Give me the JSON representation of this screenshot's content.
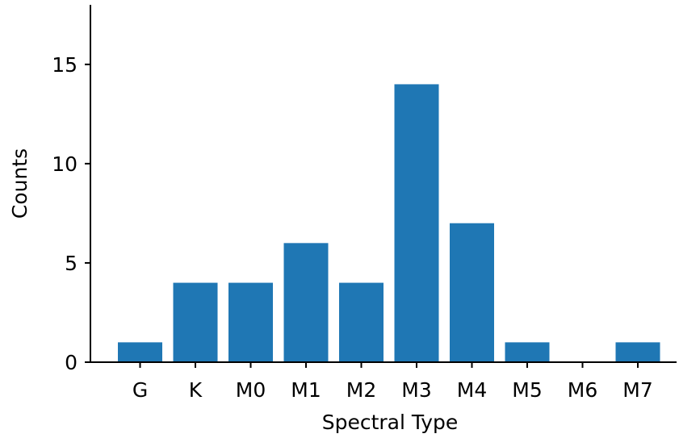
{
  "chart_data": {
    "type": "bar",
    "categories": [
      "G",
      "K",
      "M0",
      "M1",
      "M2",
      "M3",
      "M4",
      "M5",
      "M6",
      "M7"
    ],
    "values": [
      1,
      4,
      4,
      6,
      4,
      14,
      7,
      1,
      0,
      1
    ],
    "title": "",
    "xlabel": "Spectral Type",
    "ylabel": "Counts",
    "ylim": [
      0,
      18
    ],
    "yticks": [
      0,
      5,
      10,
      15
    ],
    "grid": false,
    "bar_color": "#1f77b4"
  }
}
